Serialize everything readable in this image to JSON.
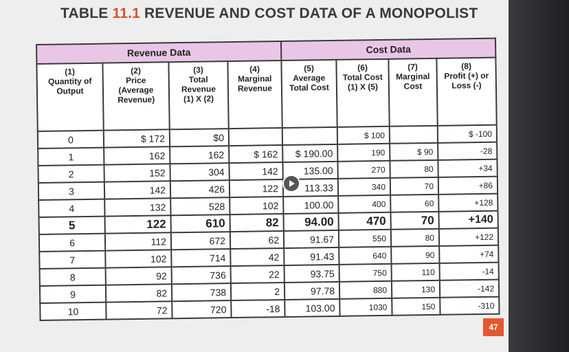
{
  "title": {
    "prefix": "TABLE ",
    "num": "11.1",
    "rest": " REVENUE AND COST DATA OF A MONOPOLIST"
  },
  "groups": {
    "revenue": "Revenue Data",
    "cost": "Cost Data"
  },
  "headers": [
    [
      "(1)",
      "Quantity of",
      "Output"
    ],
    [
      "(2)",
      "Price",
      "(Average",
      "Revenue)"
    ],
    [
      "(3)",
      "Total",
      "Revenue",
      "(1) X (2)"
    ],
    [
      "(4)",
      "Marginal",
      "Revenue"
    ],
    [
      "(5)",
      "Average",
      "Total Cost"
    ],
    [
      "(6)",
      "Total Cost",
      "(1) X (5)"
    ],
    [
      "(7)",
      "Marginal",
      "Cost"
    ],
    [
      "(8)",
      "Profit (+) or",
      "Loss (-)"
    ]
  ],
  "rows": [
    [
      "0",
      "$ 172",
      "$0",
      "",
      "",
      "$ 100",
      "",
      "$ -100"
    ],
    [
      "1",
      "162",
      "162",
      "$ 162",
      "$ 190.00",
      "190",
      "$ 90",
      "-28"
    ],
    [
      "2",
      "152",
      "304",
      "142",
      "135.00",
      "270",
      "80",
      "+34"
    ],
    [
      "3",
      "142",
      "426",
      "122",
      "113.33",
      "340",
      "70",
      "+86"
    ],
    [
      "4",
      "132",
      "528",
      "102",
      "100.00",
      "400",
      "60",
      "+128"
    ],
    [
      "5",
      "122",
      "610",
      "82",
      "94.00",
      "470",
      "70",
      "+140"
    ],
    [
      "6",
      "112",
      "672",
      "62",
      "91.67",
      "550",
      "80",
      "+122"
    ],
    [
      "7",
      "102",
      "714",
      "42",
      "91.43",
      "640",
      "90",
      "+74"
    ],
    [
      "8",
      "92",
      "736",
      "22",
      "93.75",
      "750",
      "110",
      "-14"
    ],
    [
      "9",
      "82",
      "738",
      "2",
      "97.78",
      "880",
      "130",
      "-142"
    ],
    [
      "10",
      "72",
      "720",
      "-18",
      "103.00",
      "1030",
      "150",
      "-310"
    ]
  ],
  "highlight_row": 5,
  "page_number": "47",
  "colors": {
    "accent": "#d9532b",
    "header_band": "#e9c6e6",
    "badge": "#e5572f"
  }
}
